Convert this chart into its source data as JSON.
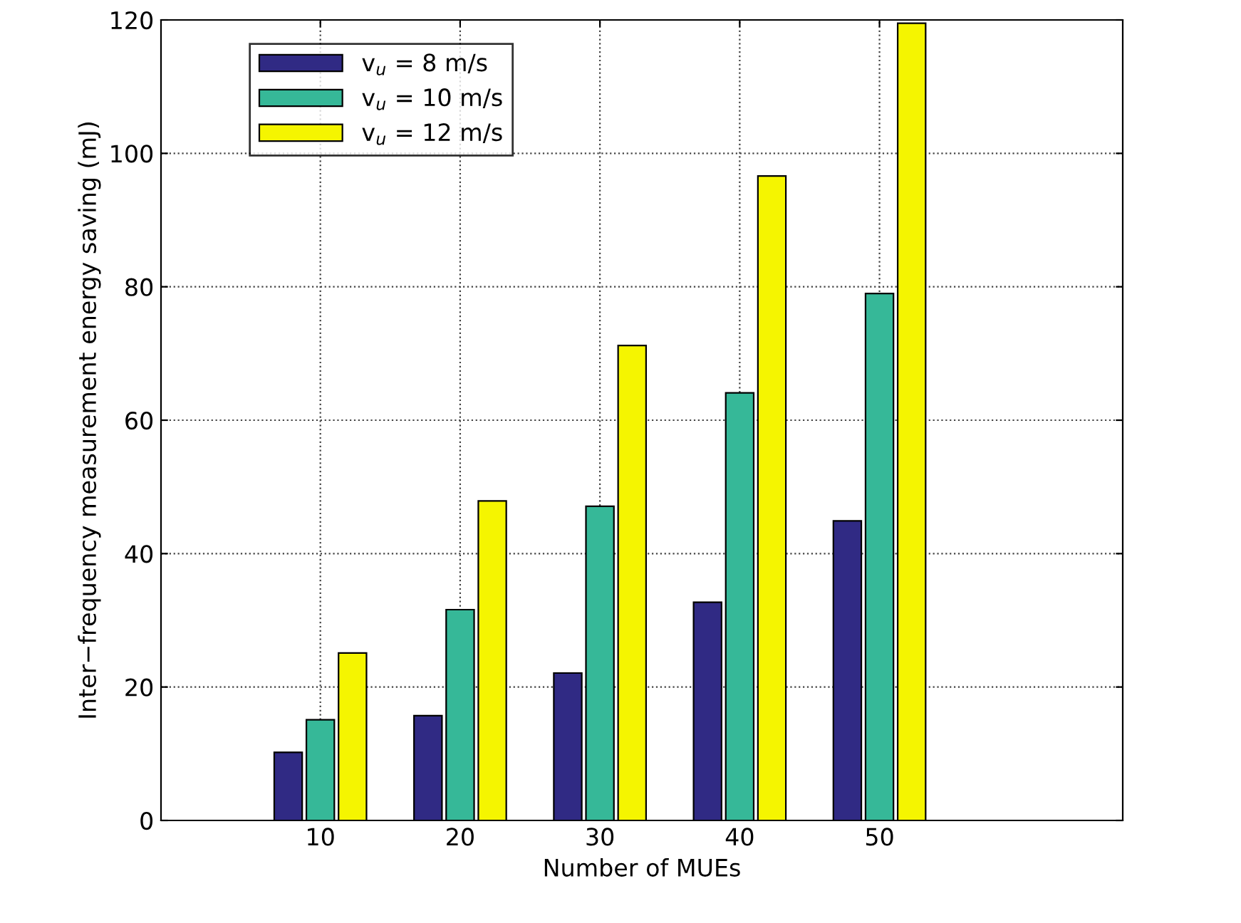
{
  "chart_data": {
    "type": "bar",
    "xlabel": "Number of MUEs",
    "ylabel": "Inter−frequency measurement energy saving (mJ)",
    "categories": [
      "10",
      "20",
      "30",
      "40",
      "50"
    ],
    "series": [
      {
        "name": "v$_{u}$ = 8 m/s",
        "color": "#302a84",
        "values": [
          10.2,
          15.7,
          22.1,
          32.7,
          44.9
        ]
      },
      {
        "name": "v$_{u}$ = 10 m/s",
        "color": "#36b898",
        "values": [
          15.1,
          31.6,
          47.1,
          64.1,
          79.0
        ]
      },
      {
        "name": "v$_{u}$ = 12 m/s",
        "color": "#f5f500",
        "values": [
          25.1,
          47.9,
          71.2,
          96.6,
          119.5
        ]
      }
    ],
    "ylim": [
      0,
      120
    ],
    "yticks": [
      0,
      20,
      40,
      60,
      80,
      100,
      120
    ],
    "grid": true,
    "legend": "top left"
  }
}
